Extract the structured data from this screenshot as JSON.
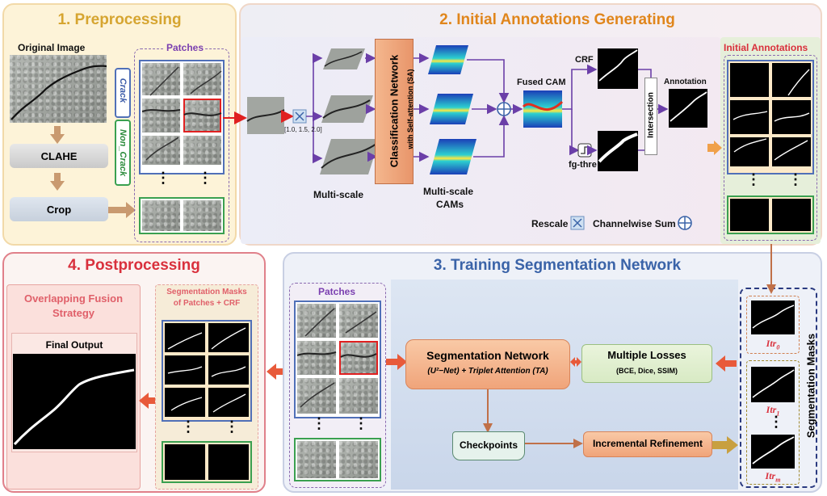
{
  "panels": {
    "preprocessing": {
      "title": "1. Preprocessing",
      "original_image_label": "Original Image",
      "patches_label": "Patches",
      "clahe_label": "CLAHE",
      "crop_label": "Crop",
      "crack_label": "Crack",
      "non_crack_label": "Non_Crack",
      "dots": "⋮"
    },
    "initial_annotations_generating": {
      "title": "2. Initial Annotations Generating",
      "classification_network_label": "Classification Network",
      "self_attention_label": "with Self-attention (SA)",
      "scale_values": "[1.0, 1.5, 2.0]",
      "multi_scale_label": "Multi-scale",
      "multi_scale_cams_label_1": "Multi-scale",
      "multi_scale_cams_label_2": "CAMs",
      "fused_cam_label": "Fused CAM",
      "crf_label": "CRF",
      "fg_thre_label": "fg-thre",
      "intersection_label": "Intersection",
      "annotation_label": "Annotation",
      "rescale_legend": "Rescale",
      "channelwise_sum_legend": "Channelwise Sum"
    },
    "initial_annotations": {
      "title": "Initial Annotations",
      "dots": "⋮"
    },
    "postprocessing": {
      "title": "4. Postprocessing",
      "overlapping_title_1": "Overlapping Fusion",
      "overlapping_title_2": "Strategy",
      "final_output_label": "Final Output",
      "seg_masks_title_1": "Segmentation Masks",
      "seg_masks_title_2": "of Patches + CRF",
      "dots": "⋮"
    },
    "training": {
      "title": "3. Training Segmentation Network",
      "patches_label": "Patches",
      "seg_network_label": "Segmentation Network",
      "seg_network_sub": "(U²−Net) + Triplet Attention (TA)",
      "multiple_losses_label": "Multiple Losses",
      "losses_sub": "(BCE, Dice, SSIM)",
      "checkpoints_label": "Checkpoints",
      "incremental_label": "Incremental Refinement",
      "segmentation_masks_label": "Segmentation Masks",
      "itr0": "Itr",
      "itr0_sub": "0",
      "itr1": "Itr",
      "itr1_sub": "1",
      "itrm": "Itr",
      "itrm_sub": "m",
      "dots": "⋮"
    }
  },
  "colors": {
    "orange_title": "#e0861c",
    "crimson_title": "#d9303c",
    "blue_title": "#3a63a8",
    "purple": "#7a3fb0",
    "arrow_red": "#e02020",
    "arrow_purple": "#6b3fa8"
  }
}
